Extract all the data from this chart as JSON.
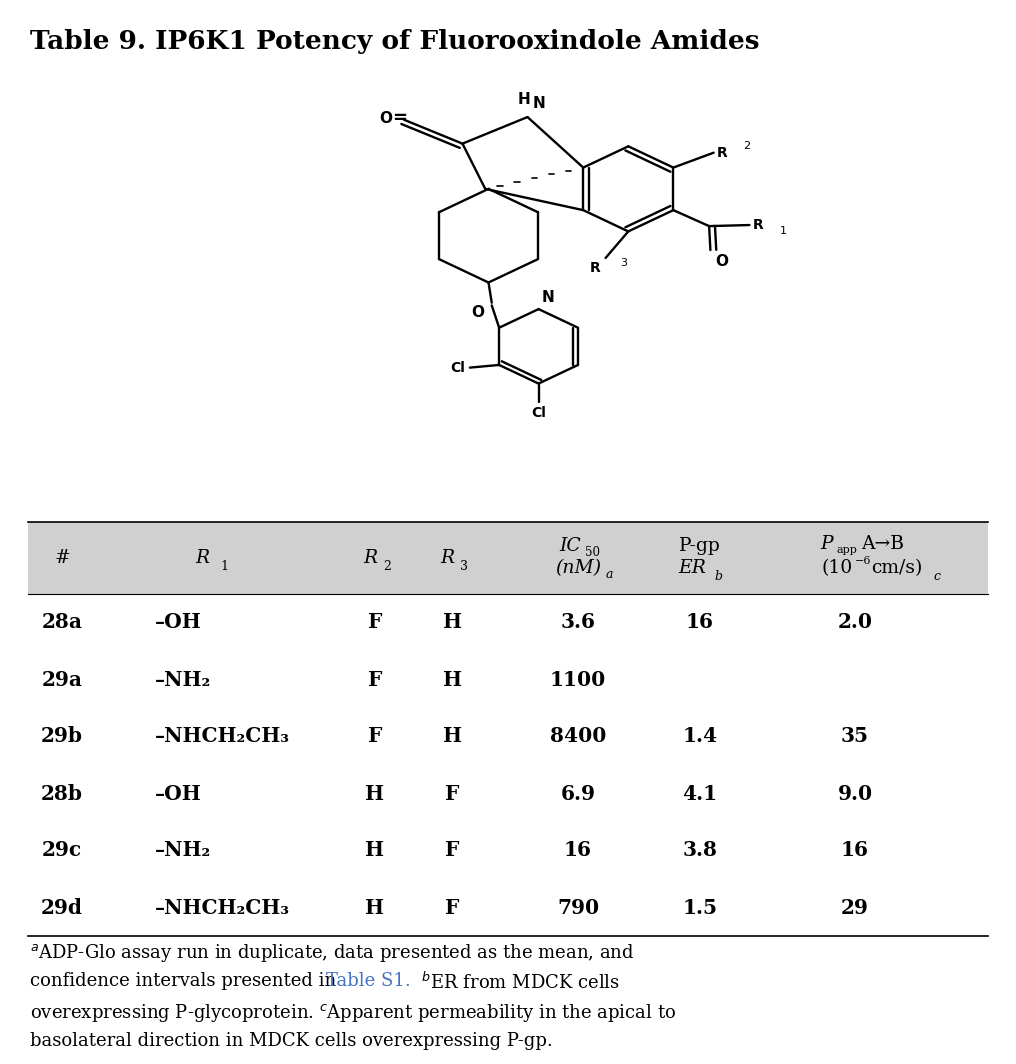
{
  "title": "Table 9. IP6K1 Potency of Fluorooxindole Amides",
  "bg_color": "#ffffff",
  "table_header_bg": "#d4d4d4",
  "rows": [
    [
      "28a",
      "–OH",
      "F",
      "H",
      "3.6",
      "16",
      "2.0"
    ],
    [
      "29a",
      "–NH₂",
      "F",
      "H",
      "1100",
      "",
      ""
    ],
    [
      "29b",
      "–NHCH₂CH₃",
      "F",
      "H",
      "8400",
      "1.4",
      "35"
    ],
    [
      "28b",
      "–OH",
      "H",
      "F",
      "6.9",
      "4.1",
      "9.0"
    ],
    [
      "29c",
      "–NH₂",
      "H",
      "F",
      "16",
      "3.8",
      "16"
    ],
    [
      "29d",
      "–NHCH₂CH₃",
      "H",
      "F",
      "790",
      "1.5",
      "29"
    ]
  ],
  "link_color": "#4472c4"
}
